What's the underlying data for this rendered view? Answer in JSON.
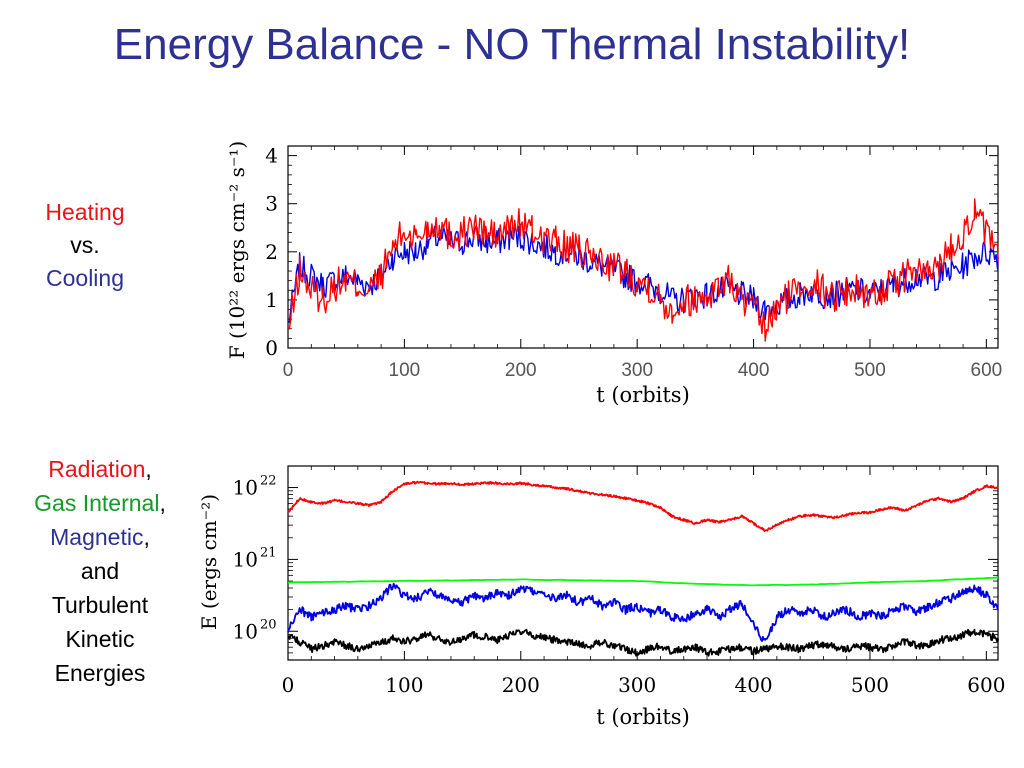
{
  "slide_title": "Energy Balance - NO Thermal Instability!",
  "top_side_label": {
    "heating": "Heating",
    "vs": "vs.",
    "cooling": "Cooling"
  },
  "bottom_side_label": {
    "radiation": "Radiation",
    "gas_internal": "Gas Internal",
    "magnetic": "Magnetic",
    "comma": ",",
    "and": "and",
    "turbulent": "Turbulent",
    "kinetic": "Kinetic",
    "energies": "Energies"
  },
  "chart_data": [
    {
      "type": "line",
      "xlabel": "t (orbits)",
      "ylabel": "F (10²² ergs cm⁻² s⁻¹)",
      "xlim": [
        0,
        610
      ],
      "ylim": [
        0,
        4.2
      ],
      "xticks": [
        0,
        100,
        200,
        300,
        400,
        500,
        600
      ],
      "yticks": [
        0,
        1,
        2,
        3,
        4
      ],
      "series": [
        {
          "key": "heating",
          "color": "#ff0000",
          "x": [
            0,
            10,
            20,
            30,
            40,
            50,
            60,
            70,
            80,
            90,
            100,
            110,
            120,
            130,
            140,
            150,
            160,
            170,
            180,
            190,
            200,
            210,
            220,
            230,
            240,
            250,
            260,
            270,
            280,
            290,
            300,
            310,
            320,
            330,
            340,
            350,
            360,
            370,
            380,
            390,
            400,
            410,
            420,
            430,
            440,
            450,
            460,
            470,
            480,
            490,
            500,
            510,
            520,
            530,
            540,
            550,
            560,
            570,
            580,
            590,
            600,
            610
          ],
          "y": [
            0.3,
            1.6,
            1.2,
            1.0,
            1.3,
            1.4,
            1.3,
            1.2,
            1.5,
            2.1,
            2.4,
            2.3,
            2.5,
            2.6,
            2.3,
            2.4,
            2.5,
            2.4,
            2.3,
            2.5,
            2.6,
            2.4,
            2.3,
            2.2,
            2.1,
            2.0,
            1.9,
            1.8,
            1.7,
            1.6,
            1.4,
            1.3,
            1.0,
            0.8,
            1.0,
            1.0,
            1.1,
            1.3,
            1.4,
            1.0,
            0.8,
            0.4,
            0.8,
            1.1,
            1.3,
            1.4,
            1.2,
            1.1,
            1.2,
            1.2,
            1.1,
            1.2,
            1.3,
            1.5,
            1.6,
            1.5,
            1.8,
            2.1,
            2.4,
            2.8,
            2.4,
            1.8
          ]
        },
        {
          "key": "cooling",
          "color": "#0000e0",
          "x": [
            0,
            10,
            20,
            30,
            40,
            50,
            60,
            70,
            80,
            90,
            100,
            110,
            120,
            130,
            140,
            150,
            160,
            170,
            180,
            190,
            200,
            210,
            220,
            230,
            240,
            250,
            260,
            270,
            280,
            290,
            300,
            310,
            320,
            330,
            340,
            350,
            360,
            370,
            380,
            390,
            400,
            410,
            420,
            430,
            440,
            450,
            460,
            470,
            480,
            490,
            500,
            510,
            520,
            530,
            540,
            550,
            560,
            570,
            580,
            590,
            600,
            610
          ],
          "y": [
            0.5,
            1.7,
            1.5,
            1.3,
            1.4,
            1.5,
            1.4,
            1.3,
            1.5,
            1.9,
            2.0,
            2.0,
            2.2,
            2.3,
            2.2,
            2.2,
            2.3,
            2.2,
            2.2,
            2.3,
            2.3,
            2.2,
            2.1,
            2.0,
            2.0,
            1.9,
            1.8,
            1.7,
            1.6,
            1.5,
            1.4,
            1.3,
            1.2,
            1.0,
            1.0,
            1.1,
            1.1,
            1.2,
            1.2,
            1.1,
            1.0,
            0.8,
            0.9,
            1.0,
            1.1,
            1.2,
            1.1,
            1.1,
            1.2,
            1.2,
            1.1,
            1.2,
            1.3,
            1.4,
            1.5,
            1.4,
            1.5,
            1.6,
            1.7,
            1.9,
            2.0,
            1.9
          ]
        }
      ]
    },
    {
      "type": "line",
      "xlabel": "t (orbits)",
      "ylabel": "E (ergs cm⁻²)",
      "yscale": "log",
      "xlim": [
        0,
        610
      ],
      "ylim_log10": [
        19.6,
        22.3
      ],
      "xticks": [
        0,
        100,
        200,
        300,
        400,
        500,
        600
      ],
      "ytick_labels": [
        {
          "base": "10",
          "exp": "20",
          "log10": 20
        },
        {
          "base": "10",
          "exp": "21",
          "log10": 21
        },
        {
          "base": "10",
          "exp": "22",
          "log10": 22
        }
      ],
      "series": [
        {
          "key": "radiation",
          "color": "#ff0000",
          "x": [
            0,
            10,
            20,
            30,
            40,
            50,
            60,
            70,
            80,
            90,
            100,
            110,
            120,
            130,
            140,
            150,
            160,
            170,
            180,
            190,
            200,
            210,
            220,
            230,
            240,
            250,
            260,
            270,
            280,
            290,
            300,
            310,
            320,
            330,
            340,
            350,
            360,
            370,
            380,
            390,
            400,
            410,
            420,
            430,
            440,
            450,
            460,
            470,
            480,
            490,
            500,
            510,
            520,
            530,
            540,
            550,
            560,
            570,
            580,
            590,
            600,
            610
          ],
          "y_log10": [
            21.65,
            21.85,
            21.8,
            21.78,
            21.82,
            21.8,
            21.78,
            21.75,
            21.8,
            21.95,
            22.05,
            22.07,
            22.06,
            22.05,
            22.06,
            22.04,
            22.05,
            22.07,
            22.06,
            22.05,
            22.06,
            22.04,
            22.02,
            22.0,
            21.98,
            21.95,
            21.92,
            21.9,
            21.88,
            21.85,
            21.82,
            21.78,
            21.72,
            21.6,
            21.55,
            21.5,
            21.55,
            21.52,
            21.55,
            21.6,
            21.5,
            21.4,
            21.48,
            21.55,
            21.6,
            21.62,
            21.6,
            21.58,
            21.62,
            21.65,
            21.65,
            21.7,
            21.72,
            21.68,
            21.75,
            21.82,
            21.85,
            21.8,
            21.85,
            21.95,
            22.02,
            22.0
          ]
        },
        {
          "key": "gas_internal",
          "color": "#00ff00",
          "x": [
            0,
            100,
            200,
            300,
            350,
            400,
            450,
            500,
            550,
            610
          ],
          "y_log10": [
            20.68,
            20.7,
            20.72,
            20.7,
            20.66,
            20.64,
            20.65,
            20.68,
            20.7,
            20.75
          ]
        },
        {
          "key": "magnetic",
          "color": "#0000e0",
          "x": [
            0,
            10,
            20,
            30,
            40,
            50,
            60,
            70,
            80,
            90,
            100,
            110,
            120,
            130,
            140,
            150,
            160,
            170,
            180,
            190,
            200,
            210,
            220,
            230,
            240,
            250,
            260,
            270,
            280,
            290,
            300,
            310,
            320,
            330,
            340,
            350,
            360,
            370,
            380,
            390,
            400,
            410,
            420,
            430,
            440,
            450,
            460,
            470,
            480,
            490,
            500,
            510,
            520,
            530,
            540,
            550,
            560,
            570,
            580,
            590,
            600,
            610
          ],
          "y_log10": [
            20.0,
            20.3,
            20.2,
            20.25,
            20.3,
            20.35,
            20.3,
            20.35,
            20.45,
            20.65,
            20.5,
            20.45,
            20.55,
            20.5,
            20.45,
            20.4,
            20.5,
            20.45,
            20.55,
            20.5,
            20.6,
            20.55,
            20.5,
            20.45,
            20.5,
            20.4,
            20.45,
            20.35,
            20.4,
            20.3,
            20.35,
            20.25,
            20.3,
            20.2,
            20.15,
            20.25,
            20.3,
            20.2,
            20.3,
            20.4,
            20.1,
            19.85,
            20.2,
            20.3,
            20.25,
            20.3,
            20.2,
            20.25,
            20.3,
            20.2,
            20.25,
            20.2,
            20.3,
            20.35,
            20.25,
            20.35,
            20.4,
            20.45,
            20.55,
            20.6,
            20.5,
            20.3
          ]
        },
        {
          "key": "turbulent_kinetic",
          "color": "#000000",
          "x": [
            0,
            10,
            20,
            30,
            40,
            50,
            60,
            70,
            80,
            90,
            100,
            110,
            120,
            130,
            140,
            150,
            160,
            170,
            180,
            190,
            200,
            210,
            220,
            230,
            240,
            250,
            260,
            270,
            280,
            290,
            300,
            310,
            320,
            330,
            340,
            350,
            360,
            370,
            380,
            390,
            400,
            410,
            420,
            430,
            440,
            450,
            460,
            470,
            480,
            490,
            500,
            510,
            520,
            530,
            540,
            550,
            560,
            570,
            580,
            590,
            600,
            610
          ],
          "y_log10": [
            19.95,
            19.85,
            19.75,
            19.8,
            19.85,
            19.8,
            19.75,
            19.8,
            19.85,
            19.9,
            19.85,
            19.9,
            19.95,
            19.9,
            19.85,
            19.9,
            19.95,
            19.92,
            19.88,
            19.95,
            20.0,
            19.95,
            19.9,
            19.88,
            19.85,
            19.82,
            19.8,
            19.85,
            19.8,
            19.75,
            19.7,
            19.75,
            19.8,
            19.72,
            19.75,
            19.78,
            19.7,
            19.72,
            19.75,
            19.78,
            19.72,
            19.75,
            19.8,
            19.78,
            19.75,
            19.8,
            19.82,
            19.78,
            19.75,
            19.8,
            19.78,
            19.75,
            19.8,
            19.85,
            19.8,
            19.82,
            19.88,
            19.9,
            19.95,
            20.0,
            19.95,
            19.9
          ]
        }
      ]
    }
  ]
}
